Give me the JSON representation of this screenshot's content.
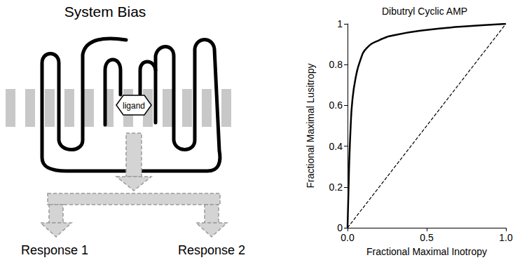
{
  "diagram": {
    "title": "System Bias",
    "ligand": "ligand",
    "responses": [
      "Response 1",
      "Response 2"
    ]
  },
  "chart_data": {
    "type": "line",
    "title": "Dibutryl Cyclic AMP",
    "x_label": "Fractional Maximal Inotropy",
    "y_label": "Fractional Maximal Lusitropy",
    "xlim": [
      0,
      1
    ],
    "xticks": [
      {
        "value": 0,
        "label": "0.0"
      },
      {
        "value": 0.5,
        "label": "0.5"
      },
      {
        "value": 1,
        "label": "1.0"
      }
    ],
    "ylim": [
      0,
      1
    ],
    "yticks": [
      0,
      0.2,
      0.4,
      0.6,
      0.8,
      1
    ],
    "grid": false,
    "series": [
      {
        "color": "#000000",
        "line_style": "solid",
        "x": [
          0,
          0.01,
          0.02,
          0.03,
          0.05,
          0.08,
          0.12,
          0.2,
          0.3,
          0.5,
          0.7,
          1
        ],
        "values": [
          0,
          0.3,
          0.5,
          0.62,
          0.73,
          0.82,
          0.88,
          0.92,
          0.945,
          0.97,
          0.985,
          1
        ]
      },
      {
        "color": "#000000",
        "line_style": "dashed",
        "x": [
          0,
          1
        ],
        "values": [
          0,
          1
        ]
      }
    ]
  }
}
